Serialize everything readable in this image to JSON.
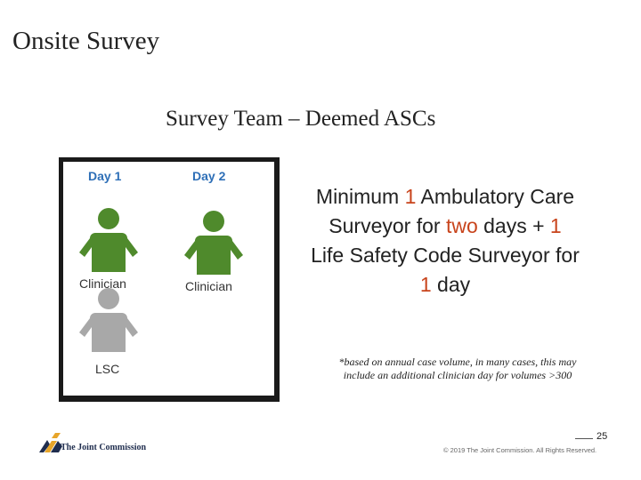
{
  "slide": {
    "title": "Onsite Survey",
    "subtitle": "Survey Team – Deemed ASCs"
  },
  "figure": {
    "day1_label": "Day 1",
    "day2_label": "Day 2",
    "day1_person1_label": "Clinician",
    "day2_person1_label": "Clinician",
    "day1_person2_label": "LSC",
    "colors": {
      "clinician": "#4f8a2c",
      "lsc": "#a8a8a8",
      "day_label": "#2e6fb7"
    }
  },
  "main_text": {
    "part1": "Minimum ",
    "num1": "1",
    "part2": " Ambulatory Care Surveyor for ",
    "two": "two",
    "part3": " days + ",
    "num2": "1",
    "part4": " Life Safety Code Surveyor for ",
    "num3": "1",
    "part5": " day"
  },
  "note": "*based on annual case volume, in many cases, this may include an additional clinician day for volumes >300",
  "footer": {
    "page_number": "25",
    "copyright": "© 2019 The Joint Commission. All Rights Reserved.",
    "logo_text": "The Joint Commission"
  }
}
